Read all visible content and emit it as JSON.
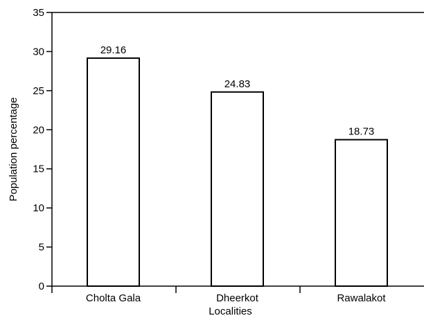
{
  "chart_data": {
    "type": "bar",
    "title": "",
    "xlabel": "Localities",
    "ylabel": "Population percentage",
    "categories": [
      "Cholta Gala",
      "Dheerkot",
      "Rawalakot"
    ],
    "values": [
      29.16,
      24.83,
      18.73
    ],
    "data_labels": [
      "29.16",
      "24.83",
      "18.73"
    ],
    "ylim": [
      0,
      35
    ],
    "yticks": [
      0,
      5,
      10,
      15,
      20,
      25,
      30,
      35
    ],
    "grid": false,
    "legend": "none",
    "bar_fill": "#ffffff",
    "bar_stroke": "#000000"
  }
}
